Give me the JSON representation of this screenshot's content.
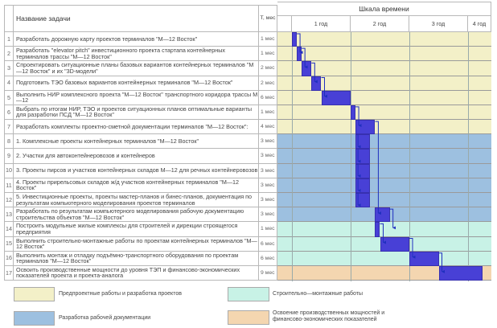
{
  "header": {
    "task_name": "Название задачи",
    "duration": "Т, мес",
    "timeline": "Шкала времени",
    "years": [
      "1 год",
      "2 год",
      "3 год",
      "4 год"
    ]
  },
  "colors": {
    "pre_project": "#f3f0c8",
    "documentation": "#9dc0e0",
    "construction": "#c8f2e6",
    "operation": "#f4d6b0",
    "bar": "#4840d6",
    "arrow": "#1f2fbf"
  },
  "chart_data": {
    "type": "bar",
    "orientation": "horizontal-gantt",
    "title": "Шкала времени",
    "x_unit": "months",
    "xlim": [
      0,
      42
    ],
    "x_tick_labels": [
      "1 год",
      "2 год",
      "3 год",
      "4 год"
    ],
    "tasks": [
      {
        "n": "1",
        "name": "Разработать дорожную карту проектов терминалов \"М—12 Восток\"",
        "duration": "1 мес",
        "start": 0,
        "end": 1,
        "phase": "pre_project"
      },
      {
        "n": "2",
        "name": "Разработать \"elevator pitch\"  инвестиционного проекта стартапа контейнерных терминалов трассы \"М—12 Восток\"",
        "duration": "1 мес",
        "start": 1,
        "end": 2,
        "phase": "pre_project"
      },
      {
        "n": "3",
        "name": "Спроектировать ситуационные планы базовых вариантов контейнерных терминалов \"М—12 Восток\" и их \"3D-модели\"",
        "duration": "2 мес",
        "start": 2,
        "end": 4,
        "phase": "pre_project"
      },
      {
        "n": "4",
        "name": "Подготовить ТЭО базовых  вариантов контейнерных терминалов \"М—12 Восток\"",
        "duration": "2 мес",
        "start": 4,
        "end": 6,
        "phase": "pre_project"
      },
      {
        "n": "5",
        "name": "Выполнить НИР комплексного проекта \"М—12 Восток\" транспортного коридора трассы М—12",
        "duration": "6 мес",
        "start": 6,
        "end": 12,
        "phase": "pre_project"
      },
      {
        "n": "6",
        "name": "Выбрать по итогам НИР, ТЭО и проектов ситуационных планов оптимальные варианты для разработки ПСД  \"М—12 Восток\"",
        "duration": "1 мес",
        "start": 12,
        "end": 13,
        "phase": "pre_project"
      },
      {
        "n": "7",
        "name": "Разработать комплекты проектно-сметной документации терминалов \"М—12 Восток\":",
        "duration": "4 мес",
        "start": 13,
        "end": 17,
        "phase": "pre_project"
      },
      {
        "n": "8",
        "name": "1. Комплексные проекты контейнерных терминалов  \"М—12 Восток\"",
        "duration": "3 мес",
        "start": 13,
        "end": 16,
        "phase": "documentation"
      },
      {
        "n": "9",
        "name": "2. Участки для автоконтейнеровозов и контейнеров",
        "duration": "3 мес",
        "start": 13,
        "end": 16,
        "phase": "documentation"
      },
      {
        "n": "10",
        "name": "3. Проекты пирсов и участков контейнерных складов М—12 для речных контейнеровозов",
        "duration": "3 мес",
        "start": 13,
        "end": 16,
        "phase": "documentation"
      },
      {
        "n": "11",
        "name": "4. Проекты прирельсовых складов ж/д участков контейнерных терминалов \"М—12 Восток\"",
        "duration": "3 мес",
        "start": 13,
        "end": 16,
        "phase": "documentation"
      },
      {
        "n": "12",
        "name": "5. Инвестиционные проекты, проекты мастер-планов и бинес-планов, документация по результатам компьютерного  моделирования проектов терминалов",
        "duration": "3 мес",
        "start": 13,
        "end": 16,
        "phase": "documentation"
      },
      {
        "n": "13",
        "name": "Разработать по результатам компьютерного моделирования рабочую документацию строительства объектов \"М—12 Восток\"",
        "duration": "3 мес",
        "start": 17,
        "end": 20,
        "phase": "documentation"
      },
      {
        "n": "14",
        "name": "Построить модульные жилые комплексы для строителей и дирекции строящегося предприятия",
        "duration": "1 мес",
        "start": 17,
        "end": 18,
        "phase": "construction"
      },
      {
        "n": "15",
        "name": "Выполнить строительно-монтажные работы по проектам контейнерных терминалов \"М—12 Восток\"",
        "duration": "6 мес",
        "start": 18,
        "end": 24,
        "phase": "construction"
      },
      {
        "n": "16",
        "name": "Выполнить монтаж и отладку подъёмно-транспортного оборудования по проектам терминалов \"М—12 Восток\"",
        "duration": "6 мес",
        "start": 24,
        "end": 30,
        "phase": "construction"
      },
      {
        "n": "17",
        "name": "Освоить производственные мощности до уровня ТЭП и финансово-экономических показателей проекта и проекта-аналога",
        "duration": "9 мес",
        "start": 30,
        "end": 39,
        "phase": "operation"
      }
    ],
    "dependencies": [
      [
        1,
        2
      ],
      [
        2,
        3
      ],
      [
        3,
        4
      ],
      [
        4,
        5
      ],
      [
        6,
        7
      ],
      [
        7,
        13
      ],
      [
        13,
        14
      ],
      [
        14,
        15
      ],
      [
        15,
        16
      ],
      [
        16,
        17
      ]
    ]
  },
  "legend": [
    {
      "phase": "pre_project",
      "label": "Предпроектные работы и разработка проектов"
    },
    {
      "phase": "documentation",
      "label": "Разработка рабочей документации"
    },
    {
      "phase": "construction",
      "label": "Строительно—монтажные работы"
    },
    {
      "phase": "operation",
      "label": "Освоение производственных мощностей и финансово-экономических показателей"
    }
  ]
}
